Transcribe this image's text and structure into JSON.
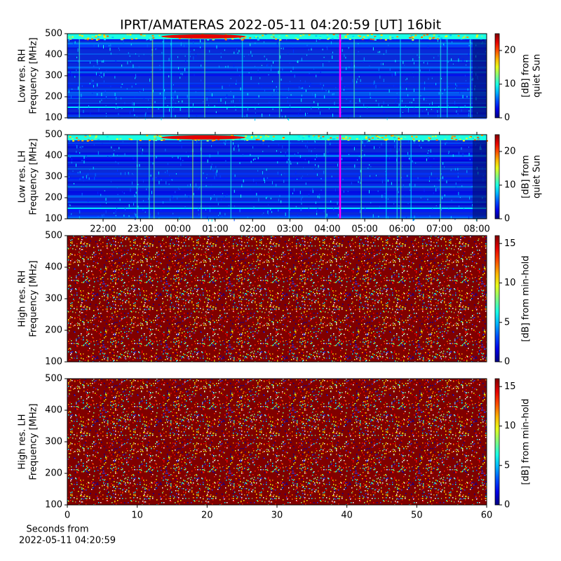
{
  "chart_data": [
    {
      "type": "heatmap",
      "title": "IPRT/AMATERAS 2022-05-11 04:20:59 [UT]   16bit",
      "ylabel": [
        "Low res. RH",
        "Frequency [MHz]"
      ],
      "ylim": [
        100,
        500
      ],
      "yticks": [
        100,
        200,
        300,
        400,
        500
      ],
      "colorbar": {
        "label": [
          "[dB] from",
          "quiet Sun"
        ],
        "lim": [
          0,
          25
        ],
        "ticks": [
          0,
          10,
          20
        ]
      }
    },
    {
      "type": "heatmap",
      "ylabel": [
        "Low res. LH",
        "Frequency [MHz]"
      ],
      "ylim": [
        100,
        500
      ],
      "yticks": [
        100,
        200,
        300,
        400,
        500
      ],
      "xticks": [
        "22:00",
        "23:00",
        "00:00",
        "01:00",
        "02:00",
        "03:00",
        "04:00",
        "05:00",
        "06:00",
        "07:00",
        "08:00"
      ],
      "colorbar": {
        "label": [
          "[dB] from",
          "quiet Sun"
        ],
        "lim": [
          0,
          25
        ],
        "ticks": [
          0,
          10,
          20
        ]
      }
    },
    {
      "type": "heatmap",
      "ylabel": [
        "High res. RH",
        "Frequency [MHz]"
      ],
      "ylim": [
        100,
        500
      ],
      "yticks": [
        100,
        200,
        300,
        400,
        500
      ],
      "colorbar": {
        "label": [
          "[dB] from min-hold"
        ],
        "lim": [
          0,
          16
        ],
        "ticks": [
          0,
          5,
          10,
          15
        ]
      }
    },
    {
      "type": "heatmap",
      "ylabel": [
        "High res. LH",
        "Frequency [MHz]"
      ],
      "ylim": [
        100,
        500
      ],
      "yticks": [
        100,
        200,
        300,
        400,
        500
      ],
      "xlabel": [
        "Seconds from",
        "2022-05-11 04:20:59"
      ],
      "xlim": [
        0,
        60
      ],
      "xticks": [
        0,
        10,
        20,
        30,
        40,
        50,
        60
      ],
      "colorbar": {
        "label": [
          "[dB] from min-hold"
        ],
        "lim": [
          0,
          16
        ],
        "ticks": [
          0,
          5,
          10,
          15
        ]
      }
    }
  ]
}
